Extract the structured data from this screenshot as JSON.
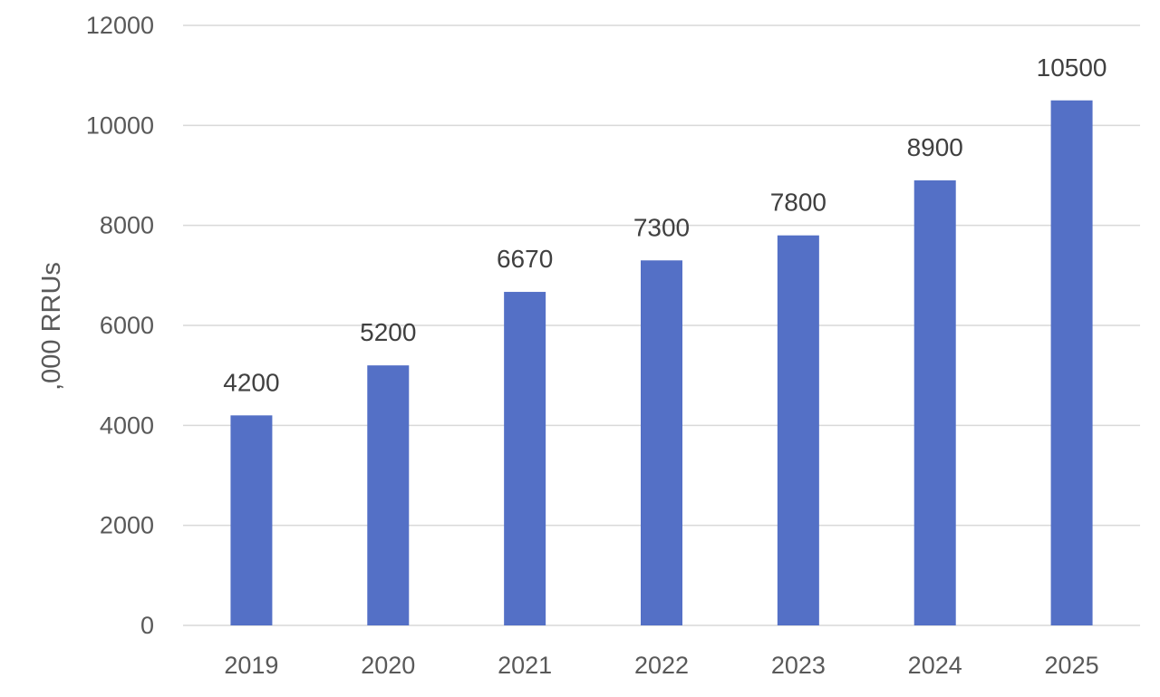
{
  "chart_data": {
    "type": "bar",
    "title": "",
    "xlabel": "",
    "ylabel": ",000 RRUs",
    "categories": [
      "2019",
      "2020",
      "2021",
      "2022",
      "2023",
      "2024",
      "2025"
    ],
    "values": [
      4200,
      5200,
      6670,
      7300,
      7800,
      8900,
      10500
    ],
    "data_labels": [
      "4200",
      "5200",
      "6670",
      "7300",
      "7800",
      "8900",
      "10500"
    ],
    "ylim": [
      0,
      12000
    ],
    "yticks": [
      0,
      2000,
      4000,
      6000,
      8000,
      10000,
      12000
    ],
    "ytick_labels": [
      "0",
      "2000",
      "4000",
      "6000",
      "8000",
      "10000",
      "12000"
    ],
    "grid": true,
    "legend": "none",
    "bar_color": "#5470c6"
  }
}
